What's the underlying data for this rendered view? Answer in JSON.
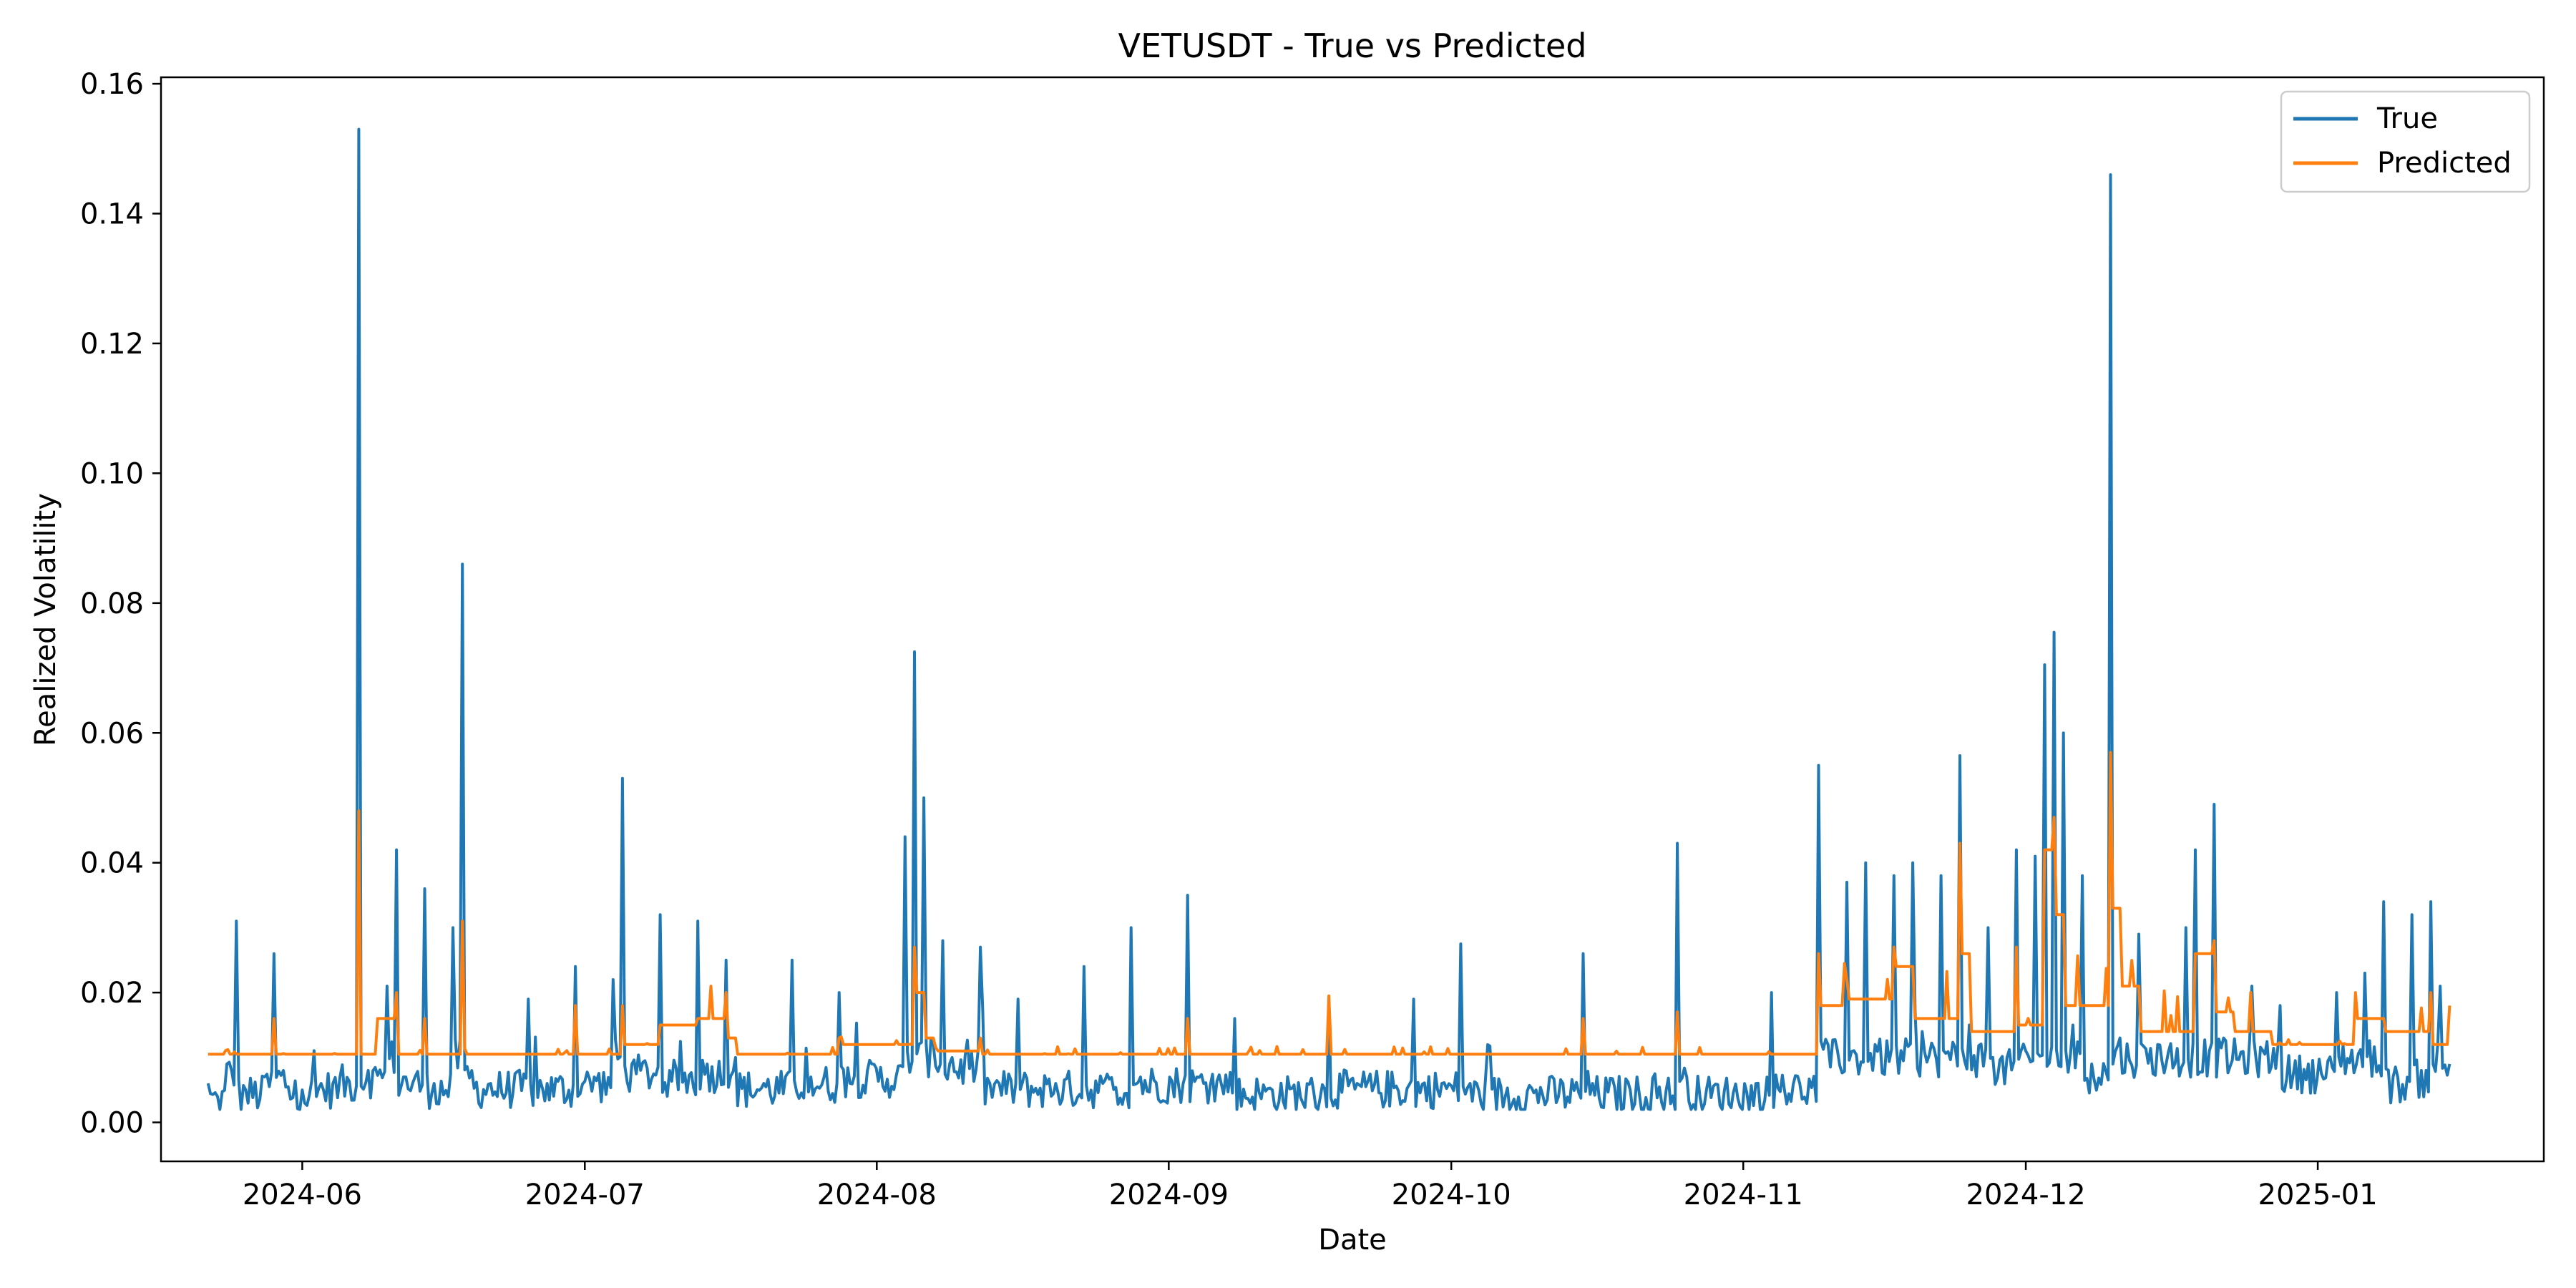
{
  "chart_data": {
    "type": "line",
    "title": "VETUSDT - True vs Predicted",
    "xlabel": "Date",
    "ylabel": "Realized Volatility",
    "xlim": [
      "2024-05-17",
      "2025-01-25"
    ],
    "ylim": [
      -0.006,
      0.161
    ],
    "x_ticks": [
      "2024-06-01",
      "2024-07-01",
      "2024-08-01",
      "2024-09-01",
      "2024-10-01",
      "2024-11-01",
      "2024-12-01",
      "2025-01-01"
    ],
    "x_tick_labels": [
      "2024-06",
      "2024-07",
      "2024-08",
      "2024-09",
      "2024-10",
      "2024-11",
      "2024-12",
      "2025-01"
    ],
    "y_ticks": [
      0.0,
      0.02,
      0.04,
      0.06,
      0.08,
      0.1,
      0.12,
      0.14,
      0.16
    ],
    "y_tick_labels": [
      "0.00",
      "0.02",
      "0.04",
      "0.06",
      "0.08",
      "0.10",
      "0.12",
      "0.14",
      "0.16"
    ],
    "grid": false,
    "legend_position": "top-right",
    "series": [
      {
        "name": "True",
        "color": "#1f77b4",
        "points": [
          [
            "2024-05-22",
            0.006
          ],
          [
            "2024-05-23",
            0.004
          ],
          [
            "2024-05-24",
            0.009
          ],
          [
            "2024-05-25",
            0.031
          ],
          [
            "2024-05-26",
            0.005
          ],
          [
            "2024-05-28",
            0.007
          ],
          [
            "2024-05-29",
            0.026
          ],
          [
            "2024-05-30",
            0.008
          ],
          [
            "2024-06-01",
            0.005
          ],
          [
            "2024-06-03",
            0.006
          ],
          [
            "2024-06-05",
            0.007
          ],
          [
            "2024-06-07",
            0.153
          ],
          [
            "2024-06-08",
            0.008
          ],
          [
            "2024-06-10",
            0.021
          ],
          [
            "2024-06-11",
            0.042
          ],
          [
            "2024-06-12",
            0.007
          ],
          [
            "2024-06-14",
            0.036
          ],
          [
            "2024-06-15",
            0.006
          ],
          [
            "2024-06-17",
            0.03
          ],
          [
            "2024-06-18",
            0.086
          ],
          [
            "2024-06-19",
            0.008
          ],
          [
            "2024-06-21",
            0.006
          ],
          [
            "2024-06-25",
            0.019
          ],
          [
            "2024-06-27",
            0.006
          ],
          [
            "2024-06-30",
            0.024
          ],
          [
            "2024-07-02",
            0.007
          ],
          [
            "2024-07-04",
            0.022
          ],
          [
            "2024-07-05",
            0.053
          ],
          [
            "2024-07-06",
            0.009
          ],
          [
            "2024-07-09",
            0.032
          ],
          [
            "2024-07-10",
            0.008
          ],
          [
            "2024-07-13",
            0.031
          ],
          [
            "2024-07-14",
            0.009
          ],
          [
            "2024-07-16",
            0.025
          ],
          [
            "2024-07-17",
            0.01
          ],
          [
            "2024-07-20",
            0.006
          ],
          [
            "2024-07-23",
            0.025
          ],
          [
            "2024-07-25",
            0.007
          ],
          [
            "2024-07-28",
            0.02
          ],
          [
            "2024-07-31",
            0.008
          ],
          [
            "2024-08-04",
            0.044
          ],
          [
            "2024-08-05",
            0.0725
          ],
          [
            "2024-08-06",
            0.05
          ],
          [
            "2024-08-07",
            0.012
          ],
          [
            "2024-08-08",
            0.028
          ],
          [
            "2024-08-09",
            0.01
          ],
          [
            "2024-08-12",
            0.027
          ],
          [
            "2024-08-14",
            0.006
          ],
          [
            "2024-08-16",
            0.019
          ],
          [
            "2024-08-20",
            0.006
          ],
          [
            "2024-08-23",
            0.024
          ],
          [
            "2024-08-25",
            0.006
          ],
          [
            "2024-08-28",
            0.03
          ],
          [
            "2024-08-29",
            0.007
          ],
          [
            "2024-09-03",
            0.035
          ],
          [
            "2024-09-04",
            0.007
          ],
          [
            "2024-09-08",
            0.016
          ],
          [
            "2024-09-12",
            0.005
          ],
          [
            "2024-09-18",
            0.019
          ],
          [
            "2024-09-21",
            0.006
          ],
          [
            "2024-09-27",
            0.019
          ],
          [
            "2024-09-30",
            0.006
          ],
          [
            "2024-10-02",
            0.0275
          ],
          [
            "2024-10-03",
            0.006
          ],
          [
            "2024-10-10",
            0.005
          ],
          [
            "2024-10-15",
            0.026
          ],
          [
            "2024-10-16",
            0.006
          ],
          [
            "2024-10-20",
            0.005
          ],
          [
            "2024-10-25",
            0.043
          ],
          [
            "2024-10-26",
            0.007
          ],
          [
            "2024-10-30",
            0.005
          ],
          [
            "2024-11-04",
            0.02
          ],
          [
            "2024-11-07",
            0.006
          ],
          [
            "2024-11-09",
            0.055
          ],
          [
            "2024-11-10",
            0.012
          ],
          [
            "2024-11-12",
            0.037
          ],
          [
            "2024-11-14",
            0.04
          ],
          [
            "2024-11-15",
            0.012
          ],
          [
            "2024-11-17",
            0.038
          ],
          [
            "2024-11-19",
            0.04
          ],
          [
            "2024-11-20",
            0.014
          ],
          [
            "2024-11-22",
            0.038
          ],
          [
            "2024-11-24",
            0.0565
          ],
          [
            "2024-11-25",
            0.015
          ],
          [
            "2024-11-27",
            0.03
          ],
          [
            "2024-11-29",
            0.01
          ],
          [
            "2024-11-30",
            0.042
          ],
          [
            "2024-12-01",
            0.011
          ],
          [
            "2024-12-02",
            0.041
          ],
          [
            "2024-12-03",
            0.0705
          ],
          [
            "2024-12-04",
            0.0755
          ],
          [
            "2024-12-05",
            0.06
          ],
          [
            "2024-12-06",
            0.015
          ],
          [
            "2024-12-07",
            0.038
          ],
          [
            "2024-12-08",
            0.009
          ],
          [
            "2024-12-10",
            0.146
          ],
          [
            "2024-12-11",
            0.013
          ],
          [
            "2024-12-13",
            0.029
          ],
          [
            "2024-12-15",
            0.012
          ],
          [
            "2024-12-18",
            0.03
          ],
          [
            "2024-12-19",
            0.042
          ],
          [
            "2024-12-21",
            0.049
          ],
          [
            "2024-12-22",
            0.013
          ],
          [
            "2024-12-25",
            0.021
          ],
          [
            "2024-12-28",
            0.018
          ],
          [
            "2024-12-31",
            0.009
          ],
          [
            "2025-01-03",
            0.02
          ],
          [
            "2025-01-06",
            0.023
          ],
          [
            "2025-01-08",
            0.034
          ],
          [
            "2025-01-09",
            0.007
          ],
          [
            "2025-01-11",
            0.032
          ],
          [
            "2025-01-12",
            0.008
          ],
          [
            "2025-01-13",
            0.034
          ],
          [
            "2025-01-14",
            0.021
          ],
          [
            "2025-01-15",
            0.009
          ]
        ]
      },
      {
        "name": "Predicted",
        "color": "#ff7f0e",
        "points": [
          [
            "2024-05-22",
            0.0105
          ],
          [
            "2024-05-29",
            0.016
          ],
          [
            "2024-05-31",
            0.0105
          ],
          [
            "2024-06-07",
            0.048
          ],
          [
            "2024-06-08",
            0.0105
          ],
          [
            "2024-06-09",
            0.016
          ],
          [
            "2024-06-11",
            0.02
          ],
          [
            "2024-06-12",
            0.0105
          ],
          [
            "2024-06-14",
            0.016
          ],
          [
            "2024-06-15",
            0.0105
          ],
          [
            "2024-06-18",
            0.031
          ],
          [
            "2024-06-19",
            0.0105
          ],
          [
            "2024-06-30",
            0.018
          ],
          [
            "2024-07-01",
            0.0105
          ],
          [
            "2024-07-05",
            0.018
          ],
          [
            "2024-07-06",
            0.012
          ],
          [
            "2024-07-09",
            0.015
          ],
          [
            "2024-07-13",
            0.016
          ],
          [
            "2024-07-16",
            0.02
          ],
          [
            "2024-07-17",
            0.013
          ],
          [
            "2024-07-20",
            0.0105
          ],
          [
            "2024-07-28",
            0.013
          ],
          [
            "2024-07-31",
            0.012
          ],
          [
            "2024-08-05",
            0.027
          ],
          [
            "2024-08-06",
            0.02
          ],
          [
            "2024-08-07",
            0.013
          ],
          [
            "2024-08-09",
            0.011
          ],
          [
            "2024-08-12",
            0.013
          ],
          [
            "2024-08-14",
            0.0105
          ],
          [
            "2024-09-03",
            0.016
          ],
          [
            "2024-09-04",
            0.0105
          ],
          [
            "2024-09-18",
            0.0195
          ],
          [
            "2024-09-19",
            0.0105
          ],
          [
            "2024-10-15",
            0.016
          ],
          [
            "2024-10-16",
            0.0105
          ],
          [
            "2024-10-25",
            0.017
          ],
          [
            "2024-10-26",
            0.0105
          ],
          [
            "2024-11-09",
            0.026
          ],
          [
            "2024-11-10",
            0.018
          ],
          [
            "2024-11-12",
            0.022
          ],
          [
            "2024-11-14",
            0.019
          ],
          [
            "2024-11-17",
            0.027
          ],
          [
            "2024-11-19",
            0.024
          ],
          [
            "2024-11-21",
            0.016
          ],
          [
            "2024-11-24",
            0.043
          ],
          [
            "2024-11-25",
            0.026
          ],
          [
            "2024-11-28",
            0.014
          ],
          [
            "2024-11-30",
            0.027
          ],
          [
            "2024-12-01",
            0.015
          ],
          [
            "2024-12-03",
            0.042
          ],
          [
            "2024-12-04",
            0.047
          ],
          [
            "2024-12-05",
            0.032
          ],
          [
            "2024-12-07",
            0.018
          ],
          [
            "2024-12-10",
            0.057
          ],
          [
            "2024-12-11",
            0.033
          ],
          [
            "2024-12-13",
            0.021
          ],
          [
            "2024-12-15",
            0.014
          ],
          [
            "2024-12-19",
            0.026
          ],
          [
            "2024-12-21",
            0.028
          ],
          [
            "2024-12-23",
            0.017
          ],
          [
            "2024-12-27",
            0.014
          ],
          [
            "2024-12-31",
            0.012
          ],
          [
            "2025-01-05",
            0.02
          ],
          [
            "2025-01-08",
            0.016
          ],
          [
            "2025-01-11",
            0.014
          ],
          [
            "2025-01-13",
            0.02
          ],
          [
            "2025-01-14",
            0.012
          ],
          [
            "2025-01-15",
            0.018
          ]
        ]
      }
    ]
  }
}
